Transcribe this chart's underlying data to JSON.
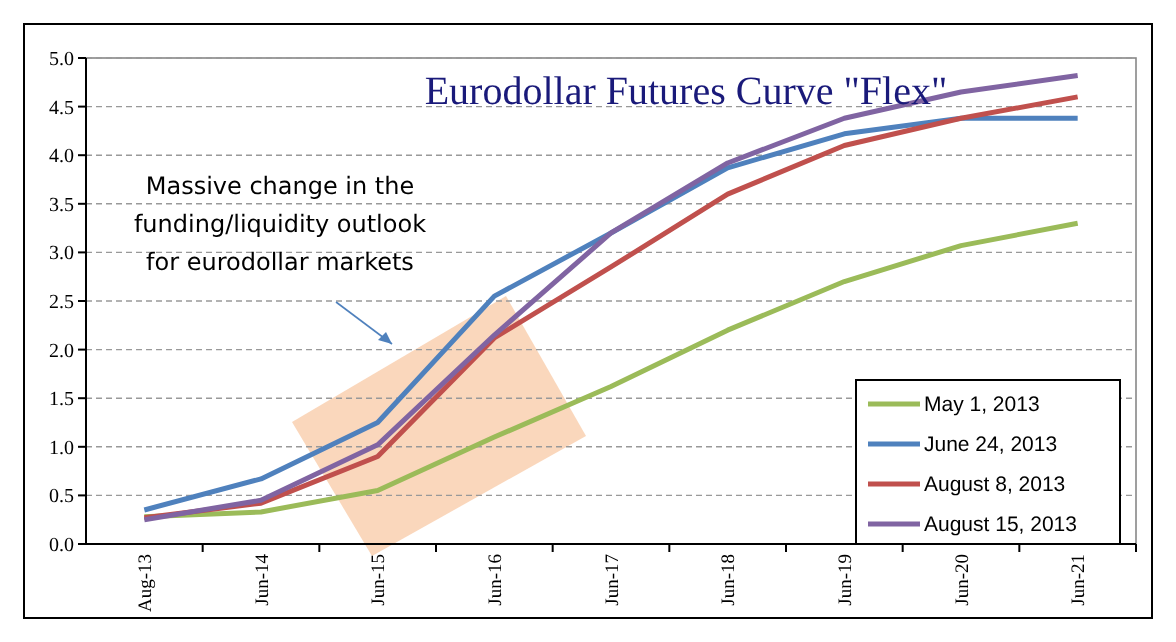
{
  "chart_data": {
    "type": "line",
    "title": "Eurodollar Futures Curve \"Flex\"",
    "annotations": [
      "Massive change in the funding/liquidity outlook for eurodollar markets"
    ],
    "categories": [
      "Aug-13",
      "Jun-14",
      "Jun-15",
      "Jun-16",
      "Jun-17",
      "Jun-18",
      "Jun-19",
      "Jun-20",
      "Jun-21"
    ],
    "series": [
      {
        "name": "May 1, 2013",
        "color": "#9bbb59",
        "values": [
          0.28,
          0.33,
          0.55,
          1.1,
          1.62,
          2.2,
          2.7,
          3.07,
          3.3
        ]
      },
      {
        "name": "June 24, 2013",
        "color": "#4f81bd",
        "values": [
          0.35,
          0.67,
          1.25,
          2.55,
          3.2,
          3.87,
          4.22,
          4.38,
          4.38
        ]
      },
      {
        "name": "August 8, 2013",
        "color": "#c0504d",
        "values": [
          0.27,
          0.42,
          0.9,
          2.12,
          2.85,
          3.6,
          4.1,
          4.38,
          4.6
        ]
      },
      {
        "name": "August 15, 2013",
        "color": "#8064a2",
        "values": [
          0.25,
          0.45,
          1.02,
          2.15,
          3.2,
          3.92,
          4.38,
          4.65,
          4.82
        ]
      }
    ],
    "ylim": [
      0,
      5
    ],
    "yticks": [
      {
        "value": 0,
        "label": "0.0"
      },
      {
        "value": 0.5,
        "label": "0.5"
      },
      {
        "value": 1,
        "label": "1.0"
      },
      {
        "value": 1.5,
        "label": "1.5"
      },
      {
        "value": 2,
        "label": "2.0"
      },
      {
        "value": 2.5,
        "label": "2.5"
      },
      {
        "value": 3,
        "label": "3.0"
      },
      {
        "value": 3.5,
        "label": "3.5"
      },
      {
        "value": 4,
        "label": "4.0"
      },
      {
        "value": 4.5,
        "label": "4.5"
      },
      {
        "value": 5,
        "label": "5.0"
      }
    ],
    "grid": "y",
    "legend": "bottom right",
    "marker": "none",
    "line_style": "solid"
  }
}
